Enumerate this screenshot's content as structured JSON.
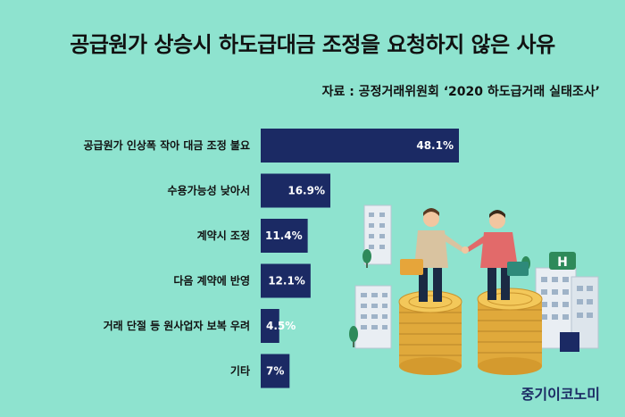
{
  "page": {
    "title": "공급원가 상승시 하도급대금 조정을 요청하지 않은 사유",
    "source": "자료 : 공정거래위원회 ‘2020 하도급거래 실태조사’",
    "brand": "중기이코노미"
  },
  "chart_data": {
    "type": "bar",
    "orientation": "horizontal",
    "title": "공급원가 상승시 하도급대금 조정을 요청하지 않은 사유",
    "categories": [
      "공급원가 인상폭 작아 대금 조정 불요",
      "수용가능성 낮아서",
      "계약시 조정",
      "다음 계약에 반영",
      "거래 단절 등 원사업자 보복 우려",
      "기타"
    ],
    "values": [
      48.1,
      16.9,
      11.4,
      12.1,
      4.5,
      7
    ],
    "value_labels": [
      "48.1%",
      "16.9%",
      "11.4%",
      "12.1%",
      "4.5%",
      "7%"
    ],
    "xlim": [
      0,
      60
    ],
    "bar_color": "#1b2a64",
    "grid": false,
    "legend": "none"
  },
  "colors": {
    "background": "#8ee3cf",
    "bar": "#1b2a64",
    "brand": "#1b2a64"
  }
}
